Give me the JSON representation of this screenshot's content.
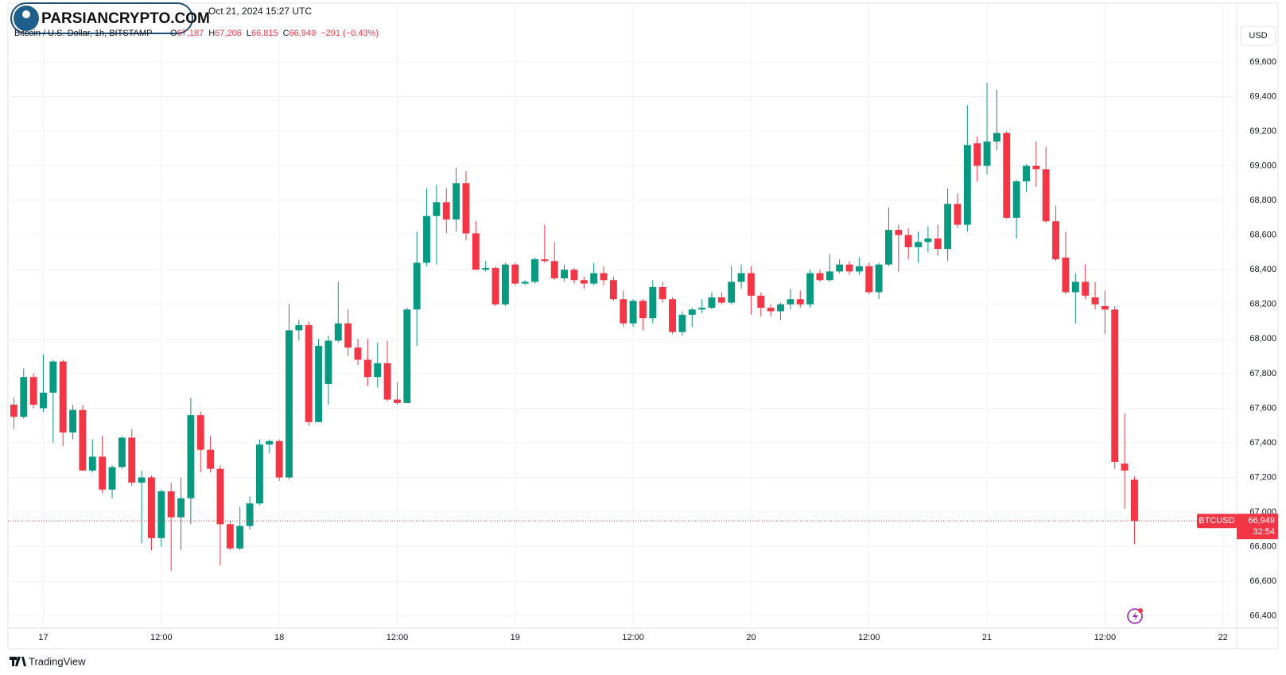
{
  "header": {
    "datetime": "Oct 21, 2024 15:27 UTC",
    "watermark": "PARSIANCRYPTO.COM",
    "currency": "USD",
    "brand": "TradingView"
  },
  "chart_data": {
    "type": "candlestick",
    "title": "Bitcoin / U.S. Dollar, 1h, BITSTAMP",
    "ohlc_labels": [
      {
        "prefix": "O",
        "label": "67,187"
      },
      {
        "prefix": "H",
        "label": "67,206"
      },
      {
        "prefix": "L",
        "label": "66,815"
      },
      {
        "prefix": "C",
        "label": "66,949"
      }
    ],
    "change_label": "−291 (−0.43%)",
    "up_color": "#089981",
    "down_color": "#f23645",
    "grid": true,
    "xlim": [
      -3.6,
      121.4
    ],
    "xticks": [
      {
        "value": 0,
        "label": "17"
      },
      {
        "value": 12,
        "label": "12:00"
      },
      {
        "value": 24,
        "label": "18"
      },
      {
        "value": 36,
        "label": "12:00"
      },
      {
        "value": 48,
        "label": "19"
      },
      {
        "value": 60,
        "label": "12:00"
      },
      {
        "value": 72,
        "label": "20"
      },
      {
        "value": 84,
        "label": "12:00"
      },
      {
        "value": 96,
        "label": "21"
      },
      {
        "value": 108,
        "label": "12:00"
      },
      {
        "value": 120,
        "label": "22"
      }
    ],
    "ylim": [
      66330,
      69820
    ],
    "yticks": [
      {
        "value": 66400,
        "label": "66,400"
      },
      {
        "value": 66600,
        "label": "66,600"
      },
      {
        "value": 66800,
        "label": "66,800"
      },
      {
        "value": 67000,
        "label": "67,000"
      },
      {
        "value": 67200,
        "label": "67,200"
      },
      {
        "value": 67400,
        "label": "67,400"
      },
      {
        "value": 67600,
        "label": "67,600"
      },
      {
        "value": 67800,
        "label": "67,800"
      },
      {
        "value": 68000,
        "label": "68,000"
      },
      {
        "value": 68200,
        "label": "68,200"
      },
      {
        "value": 68400,
        "label": "68,400"
      },
      {
        "value": 68600,
        "label": "68,600"
      },
      {
        "value": 68800,
        "label": "68,800"
      },
      {
        "value": 69000,
        "label": "69,000"
      },
      {
        "value": 69200,
        "label": "69,200"
      },
      {
        "value": 69400,
        "label": "69,400"
      },
      {
        "value": 69600,
        "label": "69,600"
      }
    ],
    "last_price": {
      "symbol": "BTCUSD",
      "value": 66949,
      "label": "66,949",
      "countdown": "32:54"
    },
    "x": [
      -3,
      -2,
      -1,
      0,
      1,
      2,
      3,
      4,
      5,
      6,
      7,
      8,
      9,
      10,
      11,
      12,
      13,
      14,
      15,
      16,
      17,
      18,
      19,
      20,
      21,
      22,
      23,
      24,
      25,
      26,
      27,
      28,
      29,
      30,
      31,
      32,
      33,
      34,
      35,
      36,
      37,
      38,
      39,
      40,
      41,
      42,
      43,
      44,
      45,
      46,
      47,
      48,
      49,
      50,
      51,
      52,
      53,
      54,
      55,
      56,
      57,
      58,
      59,
      60,
      61,
      62,
      63,
      64,
      65,
      66,
      67,
      68,
      69,
      70,
      71,
      72,
      73,
      74,
      75,
      76,
      77,
      78,
      79,
      80,
      81,
      82,
      83,
      84,
      85,
      86,
      87,
      88,
      89,
      90,
      91,
      92,
      93,
      94,
      95,
      96,
      97,
      98,
      99,
      100,
      101,
      102,
      103,
      104,
      105,
      106,
      107,
      108,
      109,
      110,
      111
    ],
    "ohlc": [
      [
        67620,
        67660,
        67480,
        67550
      ],
      [
        67550,
        67830,
        67540,
        67780
      ],
      [
        67780,
        67800,
        67600,
        67620
      ],
      [
        67600,
        67910,
        67580,
        67690
      ],
      [
        67690,
        67880,
        67400,
        67870
      ],
      [
        67870,
        67880,
        67380,
        67460
      ],
      [
        67460,
        67620,
        67420,
        67590
      ],
      [
        67590,
        67620,
        67240,
        67240
      ],
      [
        67240,
        67420,
        67230,
        67320
      ],
      [
        67320,
        67440,
        67110,
        67130
      ],
      [
        67130,
        67270,
        67080,
        67260
      ],
      [
        67260,
        67440,
        67250,
        67430
      ],
      [
        67430,
        67480,
        67150,
        67170
      ],
      [
        67170,
        67240,
        66820,
        67200
      ],
      [
        67200,
        67210,
        66780,
        66850
      ],
      [
        66850,
        67130,
        66800,
        67120
      ],
      [
        67120,
        67170,
        66660,
        66970
      ],
      [
        66970,
        67200,
        66780,
        67080
      ],
      [
        67080,
        67660,
        66930,
        67560
      ],
      [
        67560,
        67580,
        67230,
        67360
      ],
      [
        67360,
        67440,
        67230,
        67250
      ],
      [
        67250,
        67270,
        66690,
        66930
      ],
      [
        66930,
        66950,
        66780,
        66790
      ],
      [
        66790,
        67030,
        66780,
        66920
      ],
      [
        66920,
        67090,
        66900,
        67050
      ],
      [
        67050,
        67420,
        67040,
        67390
      ],
      [
        67390,
        67420,
        67340,
        67410
      ],
      [
        67410,
        67420,
        67180,
        67200
      ],
      [
        67200,
        68200,
        67190,
        68050
      ],
      [
        68050,
        68110,
        67990,
        68080
      ],
      [
        68080,
        68100,
        67500,
        67520
      ],
      [
        67520,
        68000,
        67520,
        67960
      ],
      [
        67740,
        68020,
        67620,
        67990
      ],
      [
        67990,
        68330,
        67980,
        68090
      ],
      [
        68090,
        68170,
        67900,
        67950
      ],
      [
        67950,
        68000,
        67850,
        67880
      ],
      [
        67880,
        68000,
        67730,
        67780
      ],
      [
        67780,
        67980,
        67720,
        67860
      ],
      [
        67860,
        67990,
        67640,
        67650
      ],
      [
        67650,
        67750,
        67620,
        67630
      ],
      [
        67630,
        68180,
        67630,
        68170
      ],
      [
        68170,
        68620,
        67960,
        68440
      ],
      [
        68440,
        68870,
        68420,
        68710
      ],
      [
        68710,
        68890,
        68430,
        68790
      ],
      [
        68790,
        68870,
        68610,
        68690
      ],
      [
        68690,
        68990,
        68620,
        68900
      ],
      [
        68900,
        68970,
        68570,
        68610
      ],
      [
        68610,
        68680,
        68400,
        68400
      ],
      [
        68400,
        68450,
        68390,
        68410
      ],
      [
        68410,
        68420,
        68190,
        68200
      ],
      [
        68200,
        68440,
        68190,
        68430
      ],
      [
        68430,
        68440,
        68310,
        68320
      ],
      [
        68320,
        68340,
        68310,
        68330
      ],
      [
        68330,
        68470,
        68320,
        68460
      ],
      [
        68460,
        68660,
        68440,
        68450
      ],
      [
        68450,
        68560,
        68340,
        68350
      ],
      [
        68350,
        68430,
        68330,
        68400
      ],
      [
        68400,
        68410,
        68320,
        68340
      ],
      [
        68340,
        68360,
        68290,
        68320
      ],
      [
        68320,
        68440,
        68310,
        68380
      ],
      [
        68380,
        68420,
        68310,
        68340
      ],
      [
        68340,
        68360,
        68220,
        68230
      ],
      [
        68230,
        68280,
        68070,
        68090
      ],
      [
        68090,
        68230,
        68070,
        68220
      ],
      [
        68220,
        68230,
        68050,
        68120
      ],
      [
        68120,
        68340,
        68090,
        68300
      ],
      [
        68300,
        68330,
        68210,
        68230
      ],
      [
        68230,
        68240,
        68030,
        68040
      ],
      [
        68040,
        68160,
        68020,
        68140
      ],
      [
        68140,
        68180,
        68070,
        68170
      ],
      [
        68170,
        68230,
        68150,
        68180
      ],
      [
        68180,
        68270,
        68170,
        68240
      ],
      [
        68240,
        68270,
        68200,
        68210
      ],
      [
        68210,
        68420,
        68200,
        68330
      ],
      [
        68330,
        68430,
        68290,
        68380
      ],
      [
        68380,
        68420,
        68140,
        68250
      ],
      [
        68250,
        68270,
        68130,
        68180
      ],
      [
        68180,
        68200,
        68130,
        68160
      ],
      [
        68160,
        68210,
        68110,
        68200
      ],
      [
        68200,
        68290,
        68170,
        68230
      ],
      [
        68230,
        68280,
        68180,
        68200
      ],
      [
        68200,
        68400,
        68180,
        68380
      ],
      [
        68380,
        68400,
        68330,
        68340
      ],
      [
        68340,
        68490,
        68330,
        68390
      ],
      [
        68390,
        68460,
        68380,
        68430
      ],
      [
        68430,
        68450,
        68370,
        68390
      ],
      [
        68390,
        68470,
        68370,
        68420
      ],
      [
        68420,
        68440,
        68260,
        68270
      ],
      [
        68270,
        68440,
        68230,
        68430
      ],
      [
        68430,
        68760,
        68420,
        68630
      ],
      [
        68630,
        68660,
        68390,
        68600
      ],
      [
        68600,
        68640,
        68460,
        68530
      ],
      [
        68530,
        68620,
        68440,
        68560
      ],
      [
        68560,
        68650,
        68500,
        68580
      ],
      [
        68580,
        68660,
        68480,
        68520
      ],
      [
        68520,
        68870,
        68450,
        68780
      ],
      [
        68780,
        68840,
        68640,
        68660
      ],
      [
        68660,
        69350,
        68620,
        69120
      ],
      [
        69130,
        69170,
        68910,
        69000
      ],
      [
        69000,
        69480,
        68950,
        69140
      ],
      [
        69140,
        69440,
        69090,
        69190
      ],
      [
        69190,
        69200,
        68690,
        68700
      ],
      [
        68700,
        68920,
        68580,
        68910
      ],
      [
        68910,
        69010,
        68850,
        69000
      ],
      [
        69000,
        69140,
        68880,
        68980
      ],
      [
        68980,
        69110,
        68670,
        68680
      ],
      [
        68680,
        68770,
        68450,
        68460
      ],
      [
        68470,
        68620,
        68260,
        68270
      ],
      [
        68270,
        68380,
        68090,
        68330
      ],
      [
        68330,
        68430,
        68230,
        68250
      ],
      [
        68240,
        68330,
        68170,
        68200
      ],
      [
        68190,
        68280,
        68030,
        68170
      ],
      [
        68170,
        68190,
        67250,
        67290
      ],
      [
        67280,
        67570,
        67020,
        67240
      ],
      [
        67187,
        67206,
        66815,
        66949
      ]
    ]
  }
}
